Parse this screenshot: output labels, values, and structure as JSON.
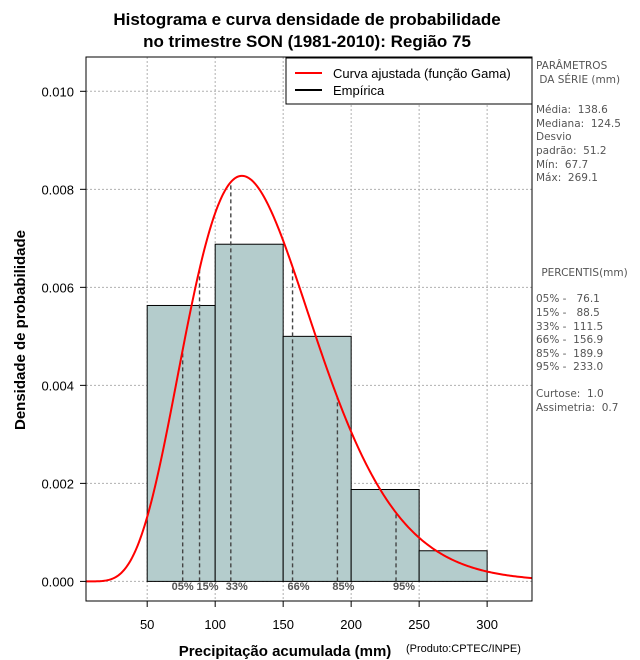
{
  "chart_data": {
    "type": "histogram",
    "title_line1": "Histograma e curva densidade de probabilidade",
    "title_line2": "no trimestre SON (1981-2010): Região 75",
    "xlabel": "Precipitação acumulada (mm)",
    "ylabel": "Densidade de probabilidade",
    "credit": "(Produto:CPTEC/INPE)",
    "xlim": [
      5,
      333
    ],
    "ylim": [
      -0.0004,
      0.0107
    ],
    "x_ticks": [
      50,
      100,
      150,
      200,
      250,
      300
    ],
    "x_tick_labels": [
      "50",
      "100",
      "150",
      "200",
      "250",
      "300"
    ],
    "y_ticks": [
      0.0,
      0.002,
      0.004,
      0.006,
      0.008,
      0.01
    ],
    "y_tick_labels": [
      "0.000",
      "0.002",
      "0.004",
      "0.006",
      "0.008",
      "0.010"
    ],
    "bins": [
      {
        "x0": 50,
        "x1": 100,
        "density": 0.00563
      },
      {
        "x0": 100,
        "x1": 150,
        "density": 0.00688
      },
      {
        "x0": 150,
        "x1": 200,
        "density": 0.005
      },
      {
        "x0": 200,
        "x1": 250,
        "density": 0.001875
      },
      {
        "x0": 250,
        "x1": 300,
        "density": 0.000625
      }
    ],
    "gamma_fit": {
      "mean": 138.6,
      "sd": 51.2
    },
    "percentiles": [
      {
        "label": "05%",
        "value": 76.1
      },
      {
        "label": "15%",
        "value": 88.5
      },
      {
        "label": "33%",
        "value": 111.5
      },
      {
        "label": "66%",
        "value": 156.9
      },
      {
        "label": "85%",
        "value": 189.9
      },
      {
        "label": "95%",
        "value": 233.0
      }
    ],
    "legend": [
      {
        "label": "Curva ajustada (função Gama)",
        "color": "#ff0000"
      },
      {
        "label": "Empírica",
        "color": "#000000"
      }
    ],
    "bar_color": "#b4cccc",
    "curve_color": "#ff0000"
  },
  "side_panel": {
    "params_title_1": "PARÂMETROS",
    "params_title_2": " DA SÉRIE (mm)",
    "media": "Média:  138.6",
    "mediana": "Mediana:  124.5",
    "desvio_1": "Desvio",
    "desvio_2": "padrão:  51.2",
    "min": "Mín:  67.7",
    "max": "Máx:  269.1",
    "percentis_title": " PERCENTIS(mm)",
    "p05": "05% -   76.1",
    "p15": "15% -   88.5",
    "p33": "33% -  111.5",
    "p66": "66% -  156.9",
    "p85": "85% -  189.9",
    "p95": "95% -  233.0",
    "curtose": "Curtose:  1.0",
    "assimetria": "Assimetria:  0.7"
  }
}
